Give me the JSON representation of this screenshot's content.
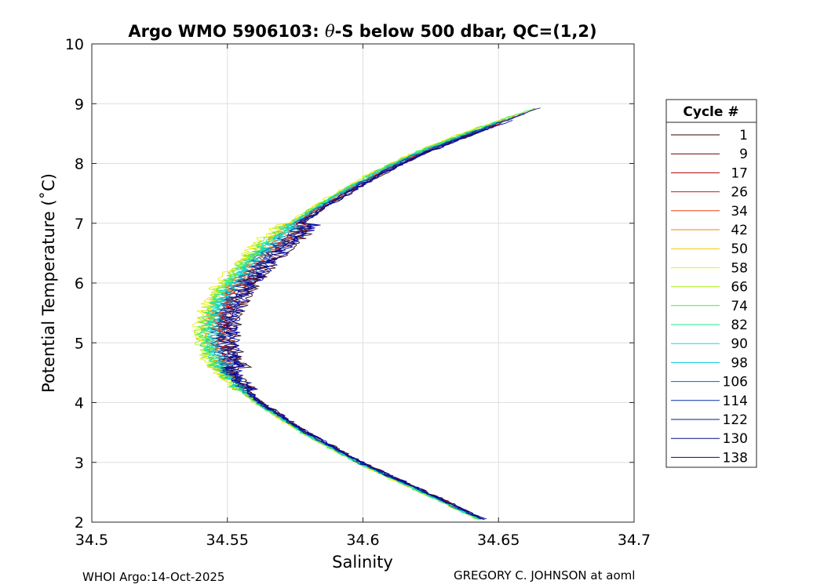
{
  "chart_data": {
    "type": "line",
    "title_prefix": "Argo WMO 5906103: ",
    "title_theta": "θ",
    "title_suffix": "-S below 500 dbar,  QC=(1,2)",
    "xlabel": "Salinity",
    "ylabel": "Potential Temperature (˚C)",
    "xlim": [
      34.5,
      34.7
    ],
    "ylim": [
      2,
      10
    ],
    "xticks": [
      34.5,
      34.55,
      34.6,
      34.65,
      34.7
    ],
    "xtick_labels": [
      "34.5",
      "34.55",
      "34.6",
      "34.65",
      "34.7"
    ],
    "yticks": [
      2,
      3,
      4,
      5,
      6,
      7,
      8,
      9,
      10
    ],
    "ytick_labels": [
      "2",
      "3",
      "4",
      "5",
      "6",
      "7",
      "8",
      "9",
      "10"
    ],
    "grid": true,
    "legend_title": "Cycle #",
    "legend_position": "outside-right",
    "series": [
      {
        "name": "1",
        "color": "#300000",
        "shift": 0.0035
      },
      {
        "name": "9",
        "color": "#6a0000",
        "shift": 0.0028
      },
      {
        "name": "17",
        "color": "#a80000",
        "shift": 0.0021
      },
      {
        "name": "26",
        "color": "#d81808",
        "shift": 0.0014
      },
      {
        "name": "34",
        "color": "#f04010",
        "shift": 0.0007
      },
      {
        "name": "42",
        "color": "#f08a00",
        "shift": 0.0
      },
      {
        "name": "50",
        "color": "#f0c800",
        "shift": -0.0007
      },
      {
        "name": "58",
        "color": "#e8f000",
        "shift": -0.0014
      },
      {
        "name": "66",
        "color": "#b0f020",
        "shift": -0.001
      },
      {
        "name": "74",
        "color": "#40f040",
        "shift": -0.0006
      },
      {
        "name": "82",
        "color": "#20e890",
        "shift": -0.0002
      },
      {
        "name": "90",
        "color": "#10e0c8",
        "shift": 0.0002
      },
      {
        "name": "98",
        "color": "#00c8e0",
        "shift": 0.0006
      },
      {
        "name": "106",
        "color": "#0070a0",
        "shift": 0.0012
      },
      {
        "name": "114",
        "color": "#0030a0",
        "shift": 0.0018
      },
      {
        "name": "122",
        "color": "#0a1a90",
        "shift": 0.0024
      },
      {
        "name": "130",
        "color": "#00108a",
        "shift": 0.003
      },
      {
        "name": "138",
        "color": "#0000b0",
        "shift": 0.0034
      }
    ],
    "base_curve": {
      "theta": [
        2.05,
        2.5,
        3.0,
        3.5,
        4.0,
        4.3,
        4.6,
        4.9,
        5.2,
        5.5,
        5.8,
        6.1,
        6.4,
        6.7,
        7.0,
        7.3,
        7.6,
        7.9,
        8.2,
        8.5,
        8.8,
        9.0
      ],
      "salinity": [
        34.643,
        34.622,
        34.598,
        34.578,
        34.561,
        34.553,
        34.547,
        34.5435,
        34.543,
        34.5445,
        34.548,
        34.553,
        34.559,
        34.566,
        34.574,
        34.584,
        34.595,
        34.607,
        34.621,
        34.638,
        34.656,
        34.668
      ]
    }
  },
  "footer": {
    "left": "WHOI Argo:14-Oct-2025",
    "right": "GREGORY C. JOHNSON at aoml"
  }
}
